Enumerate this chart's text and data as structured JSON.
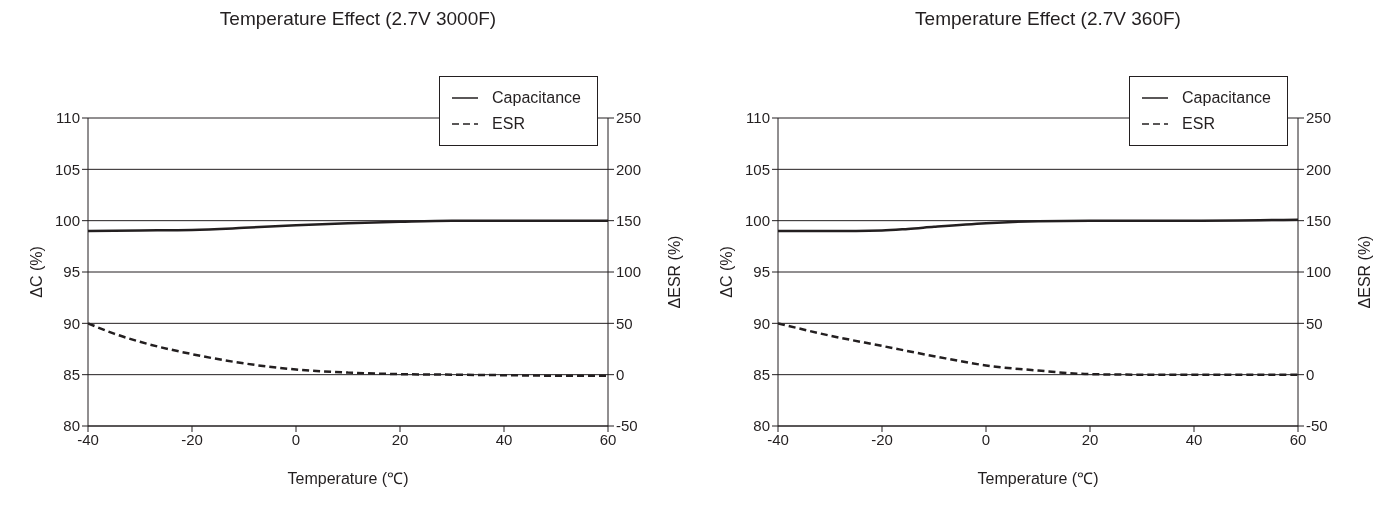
{
  "chart_data": [
    {
      "type": "line",
      "title": "Temperature Effect (2.7V 3000F)",
      "xlabel": "Temperature (℃)",
      "ylabel": "ΔC (%)",
      "y2label": "ΔESR (%)",
      "xlim": [
        -40,
        60
      ],
      "xticks": [
        -40,
        -20,
        0,
        20,
        40,
        60
      ],
      "ylim": [
        80,
        110
      ],
      "yticks": [
        80,
        85,
        90,
        95,
        100,
        105,
        110
      ],
      "y2lim": [
        -50,
        250
      ],
      "y2ticks": [
        -50,
        0,
        50,
        100,
        150,
        200,
        250
      ],
      "grid": "y",
      "legend": "top right",
      "marker": "none",
      "series": [
        {
          "name": "Capacitance",
          "color": "#231f20",
          "line_style": "solid",
          "x": [
            -40,
            -30,
            -20,
            -10,
            0,
            10,
            20,
            30,
            40,
            50,
            60
          ],
          "values": [
            99,
            99.05,
            99.1,
            99.3,
            99.55,
            99.75,
            99.9,
            100,
            100,
            100,
            100
          ]
        },
        {
          "name": "ESR",
          "color": "#231f20",
          "line_style": "dashed",
          "axis": "y2",
          "x": [
            -40,
            -35,
            -30,
            -20,
            -10,
            0,
            10,
            20,
            30,
            40,
            50,
            60
          ],
          "values": [
            50,
            40,
            32,
            20,
            11,
            5,
            2,
            0.5,
            0,
            -0.5,
            -1,
            -1
          ]
        }
      ]
    },
    {
      "type": "line",
      "title": "Temperature Effect (2.7V 360F)",
      "xlabel": "Temperature (℃)",
      "ylabel": "ΔC (%)",
      "y2label": "ΔESR (%)",
      "xlim": [
        -40,
        60
      ],
      "xticks": [
        -40,
        -20,
        0,
        20,
        40,
        60
      ],
      "ylim": [
        80,
        110
      ],
      "yticks": [
        80,
        85,
        90,
        95,
        100,
        105,
        110
      ],
      "y2lim": [
        -50,
        250
      ],
      "y2ticks": [
        -50,
        0,
        50,
        100,
        150,
        200,
        250
      ],
      "grid": "y",
      "legend": "top right",
      "marker": "none",
      "series": [
        {
          "name": "Capacitance",
          "color": "#231f20",
          "line_style": "solid",
          "x": [
            -40,
            -30,
            -20,
            -15,
            -10,
            0,
            10,
            20,
            40,
            60
          ],
          "values": [
            99,
            99,
            99.05,
            99.2,
            99.4,
            99.75,
            99.95,
            100,
            100,
            100.1
          ]
        },
        {
          "name": "ESR",
          "color": "#231f20",
          "line_style": "dashed",
          "axis": "y2",
          "x": [
            -40,
            -30,
            -20,
            -10,
            0,
            10,
            20,
            30,
            40,
            60
          ],
          "values": [
            50,
            38,
            28,
            18,
            9,
            4,
            0.5,
            0,
            0,
            0
          ]
        }
      ]
    }
  ]
}
